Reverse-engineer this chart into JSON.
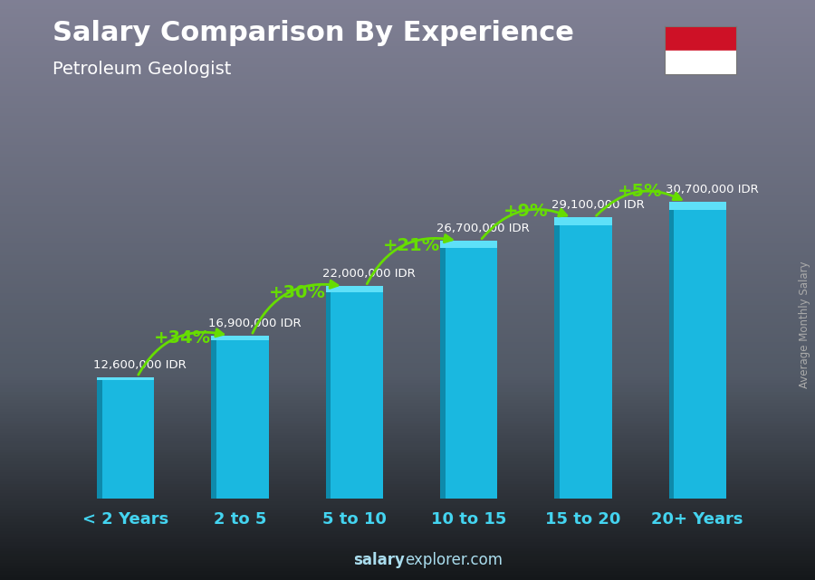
{
  "title": "Salary Comparison By Experience",
  "subtitle": "Petroleum Geologist",
  "categories": [
    "< 2 Years",
    "2 to 5",
    "5 to 10",
    "10 to 15",
    "15 to 20",
    "20+ Years"
  ],
  "values": [
    12600000,
    16900000,
    22000000,
    26700000,
    29100000,
    30700000
  ],
  "salary_labels": [
    "12,600,000 IDR",
    "16,900,000 IDR",
    "22,000,000 IDR",
    "26,700,000 IDR",
    "29,100,000 IDR",
    "30,700,000 IDR"
  ],
  "pct_labels": [
    "+34%",
    "+30%",
    "+21%",
    "+9%",
    "+5%"
  ],
  "bar_color_main": "#1ab8e0",
  "bar_color_left": "#0e8aab",
  "bar_color_top": "#5ee0f8",
  "pct_color": "#66dd00",
  "text_color": "#ffffff",
  "xtick_color": "#44d4f0",
  "bg_top_color": "#5a6a78",
  "bg_bottom_color": "#1a1a2a",
  "footer_color": "#aaddee",
  "ylabel_color": "#aaaaaa",
  "flag_red": "#ce1126",
  "flag_white": "#ffffff",
  "ylabel": "Average Monthly Salary",
  "ylim_max": 36000000,
  "bar_width": 0.5
}
